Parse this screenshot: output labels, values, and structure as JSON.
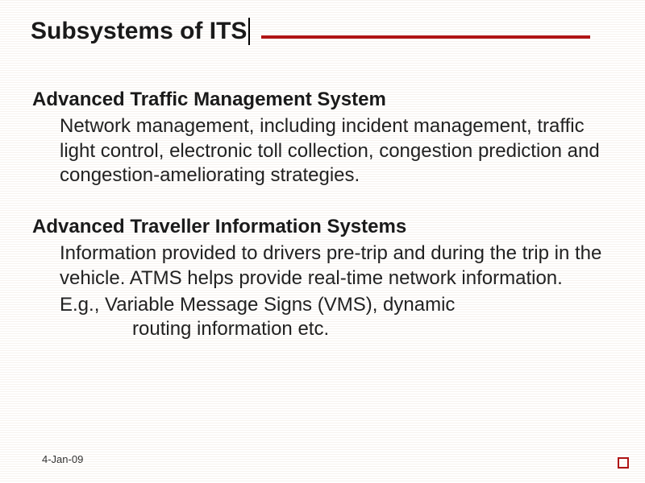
{
  "colors": {
    "accent": "#b01516",
    "text": "#1a1a1a",
    "background": "#ffffff"
  },
  "title": "Subsystems of ITS",
  "section1": {
    "heading": "Advanced Traffic Management System",
    "body": "Network management, including incident management, traffic light control, electronic toll collection, congestion prediction and congestion-ameliorating strategies."
  },
  "section2": {
    "heading": "Advanced Traveller Information Systems",
    "body": "Information provided to drivers pre-trip and during the trip in the vehicle. ATMS helps provide real-time network information.",
    "example_line1": "E.g., Variable Message Signs (VMS), dynamic",
    "example_line2": "routing information etc."
  },
  "footer_date": "4-Jan-09"
}
